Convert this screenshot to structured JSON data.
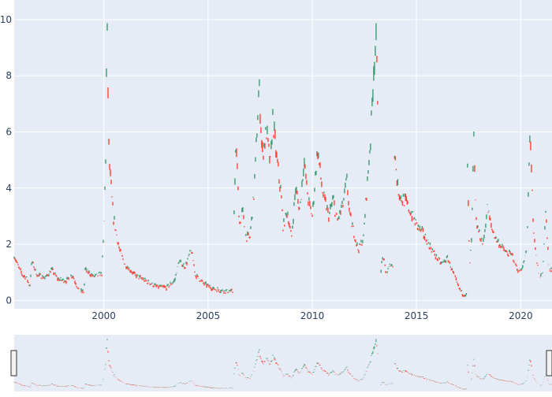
{
  "chart_data": {
    "type": "candlestick",
    "title": "",
    "xlabel": "",
    "ylabel": "",
    "x_range": [
      1995.7,
      2021.5
    ],
    "y_range": [
      -0.3,
      10.7
    ],
    "x_ticks": [
      2000,
      2005,
      2010,
      2015,
      2020
    ],
    "x_tick_labels": [
      "2000",
      "2005",
      "2010",
      "2015",
      "2020"
    ],
    "y_ticks": [
      0,
      2,
      4,
      6,
      8,
      10
    ],
    "y_tick_labels": [
      "0",
      "2",
      "4",
      "6",
      "8",
      "10"
    ],
    "grid": true,
    "legend": "none",
    "range_slider": true,
    "colors": {
      "plot_bg": "#e5ecf6",
      "grid": "#ffffff",
      "increasing": "#3d9970",
      "decreasing": "#ff4136",
      "axis_text": "#2a3f5f"
    },
    "segments": [
      {
        "points": [
          [
            1995.7,
            1.6
          ],
          [
            1995.9,
            1.2
          ],
          [
            1996.1,
            0.9
          ],
          [
            1996.3,
            0.8
          ],
          [
            1996.45,
            0.5
          ],
          [
            1996.55,
            1.4
          ],
          [
            1996.8,
            0.9
          ],
          [
            1997.2,
            0.8
          ],
          [
            1997.5,
            1.1
          ],
          [
            1997.8,
            0.75
          ],
          [
            1998.2,
            0.7
          ],
          [
            1998.5,
            0.9
          ],
          [
            1998.8,
            0.35
          ],
          [
            1999.05,
            0.3
          ],
          [
            1999.1,
            1.1
          ],
          [
            1999.5,
            0.85
          ],
          [
            1999.9,
            0.95
          ],
          [
            2000.0,
            2.4
          ],
          [
            2000.1,
            5.5
          ],
          [
            2000.15,
            10.1
          ],
          [
            2000.25,
            5.0
          ],
          [
            2000.45,
            3.0
          ],
          [
            2000.6,
            2.4
          ],
          [
            2000.75,
            1.8
          ],
          [
            2001.0,
            1.3
          ],
          [
            2001.5,
            0.9
          ],
          [
            2002.0,
            0.7
          ],
          [
            2002.5,
            0.5
          ],
          [
            2003.0,
            0.45
          ],
          [
            2003.4,
            0.7
          ],
          [
            2003.6,
            1.4
          ],
          [
            2003.9,
            1.2
          ],
          [
            2004.2,
            1.8
          ],
          [
            2004.4,
            0.9
          ],
          [
            2004.8,
            0.6
          ],
          [
            2005.3,
            0.4
          ],
          [
            2005.7,
            0.35
          ],
          [
            2006.2,
            0.3
          ]
        ]
      },
      {
        "points": [
          [
            2006.25,
            3.3
          ],
          [
            2006.35,
            5.6
          ],
          [
            2006.5,
            2.7
          ],
          [
            2006.65,
            3.2
          ],
          [
            2006.8,
            2.3
          ],
          [
            2007.0,
            2.2
          ],
          [
            2007.2,
            3.8
          ],
          [
            2007.45,
            7.6
          ],
          [
            2007.6,
            5.2
          ],
          [
            2007.8,
            6.0
          ],
          [
            2008.0,
            4.8
          ],
          [
            2008.1,
            6.5
          ],
          [
            2008.3,
            5.0
          ],
          [
            2008.5,
            3.8
          ],
          [
            2008.6,
            2.6
          ],
          [
            2008.8,
            3.2
          ],
          [
            2009.0,
            2.2
          ],
          [
            2009.2,
            4.0
          ],
          [
            2009.4,
            3.2
          ],
          [
            2009.6,
            5.0
          ],
          [
            2009.8,
            3.6
          ],
          [
            2010.0,
            3.0
          ],
          [
            2010.25,
            5.4
          ],
          [
            2010.5,
            3.8
          ],
          [
            2010.8,
            3.0
          ],
          [
            2011.0,
            3.6
          ],
          [
            2011.2,
            2.8
          ],
          [
            2011.5,
            3.5
          ],
          [
            2011.65,
            4.3
          ],
          [
            2011.8,
            3.0
          ],
          [
            2012.0,
            2.4
          ],
          [
            2012.2,
            1.8
          ],
          [
            2012.45,
            2.2
          ],
          [
            2012.6,
            3.8
          ],
          [
            2012.8,
            5.8
          ],
          [
            2012.95,
            8.4
          ],
          [
            2013.05,
            9.3
          ],
          [
            2013.15,
            7.0
          ]
        ]
      },
      {
        "points": [
          [
            2013.3,
            1.1
          ],
          [
            2013.4,
            1.6
          ],
          [
            2013.55,
            0.9
          ],
          [
            2013.75,
            1.3
          ],
          [
            2013.9,
            1.2
          ]
        ]
      },
      {
        "points": [
          [
            2013.95,
            5.4
          ],
          [
            2014.1,
            4.0
          ],
          [
            2014.3,
            3.6
          ],
          [
            2014.5,
            3.5
          ],
          [
            2014.8,
            3.0
          ],
          [
            2015.0,
            2.7
          ],
          [
            2015.3,
            2.4
          ],
          [
            2015.6,
            2.0
          ],
          [
            2015.9,
            1.6
          ],
          [
            2016.2,
            1.3
          ],
          [
            2016.5,
            1.5
          ],
          [
            2016.75,
            1.0
          ],
          [
            2017.0,
            0.5
          ],
          [
            2017.2,
            0.25
          ],
          [
            2017.4,
            0.2
          ]
        ]
      },
      {
        "points": [
          [
            2017.45,
            4.7
          ],
          [
            2017.55,
            1.2
          ],
          [
            2017.65,
            2.2
          ],
          [
            2017.75,
            5.8
          ],
          [
            2017.85,
            2.8
          ],
          [
            2018.0,
            2.4
          ],
          [
            2018.2,
            2.0
          ],
          [
            2018.4,
            3.3
          ],
          [
            2018.6,
            2.6
          ],
          [
            2018.8,
            2.2
          ],
          [
            2019.0,
            2.0
          ],
          [
            2019.3,
            1.7
          ],
          [
            2019.6,
            1.6
          ],
          [
            2019.9,
            1.0
          ],
          [
            2020.1,
            1.2
          ],
          [
            2020.3,
            1.8
          ],
          [
            2020.45,
            6.3
          ],
          [
            2020.6,
            2.5
          ],
          [
            2020.75,
            1.5
          ],
          [
            2020.9,
            0.8
          ],
          [
            2021.05,
            1.0
          ],
          [
            2021.2,
            3.2
          ],
          [
            2021.35,
            1.2
          ],
          [
            2021.5,
            1.0
          ]
        ]
      }
    ]
  }
}
